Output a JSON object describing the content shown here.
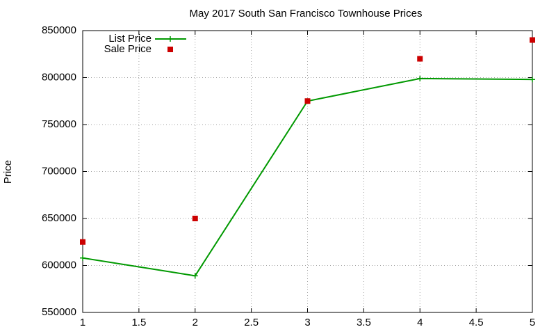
{
  "chart_data": {
    "type": "line",
    "title": "May 2017 South San Francisco Townhouse Prices",
    "y_label": "Price",
    "x": [
      1,
      2,
      3,
      4,
      5
    ],
    "series": [
      {
        "name": "List Price",
        "color": "#009900",
        "style": "linespoints",
        "values": [
          608000,
          589000,
          775000,
          799000,
          798000
        ]
      },
      {
        "name": "Sale Price",
        "color": "#cc0000",
        "style": "points",
        "values": [
          625000,
          650000,
          775000,
          820000,
          840000
        ]
      }
    ],
    "xlim": [
      1,
      5
    ],
    "xticks": [
      1,
      1.5,
      2,
      2.5,
      3,
      3.5,
      4,
      4.5,
      5
    ],
    "ylim": [
      550000,
      850000
    ],
    "yticks": [
      550000,
      600000,
      650000,
      700000,
      750000,
      800000,
      850000
    ],
    "grid": true,
    "legend": "top-left"
  }
}
